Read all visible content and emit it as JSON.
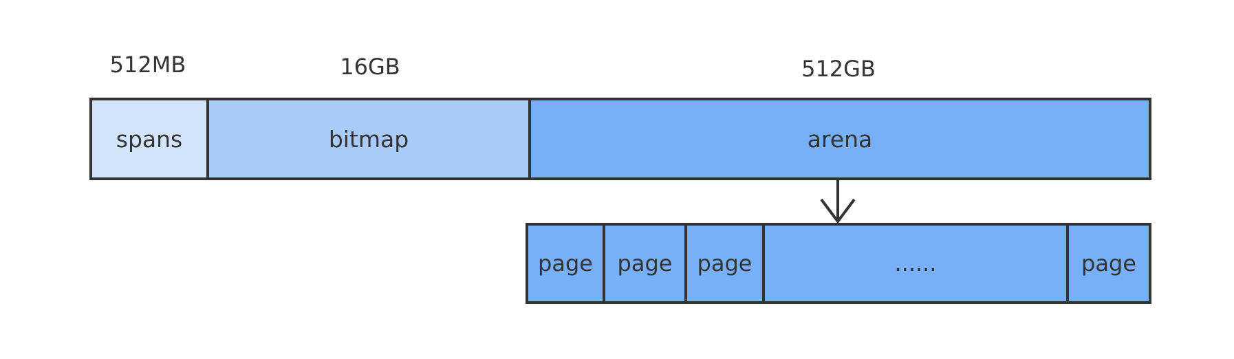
{
  "top_labels": {
    "spans_size": "512MB",
    "bitmap_size": "16GB",
    "arena_size": "512GB"
  },
  "memory_regions": {
    "spans": "spans",
    "bitmap": "bitmap",
    "arena": "arena"
  },
  "pages": [
    "page",
    "page",
    "page",
    "......",
    "page"
  ],
  "colors": {
    "spans": "#d3e5fc",
    "bitmap": "#a8cbf8",
    "arena": "#77b0f7",
    "stroke": "#333333"
  }
}
